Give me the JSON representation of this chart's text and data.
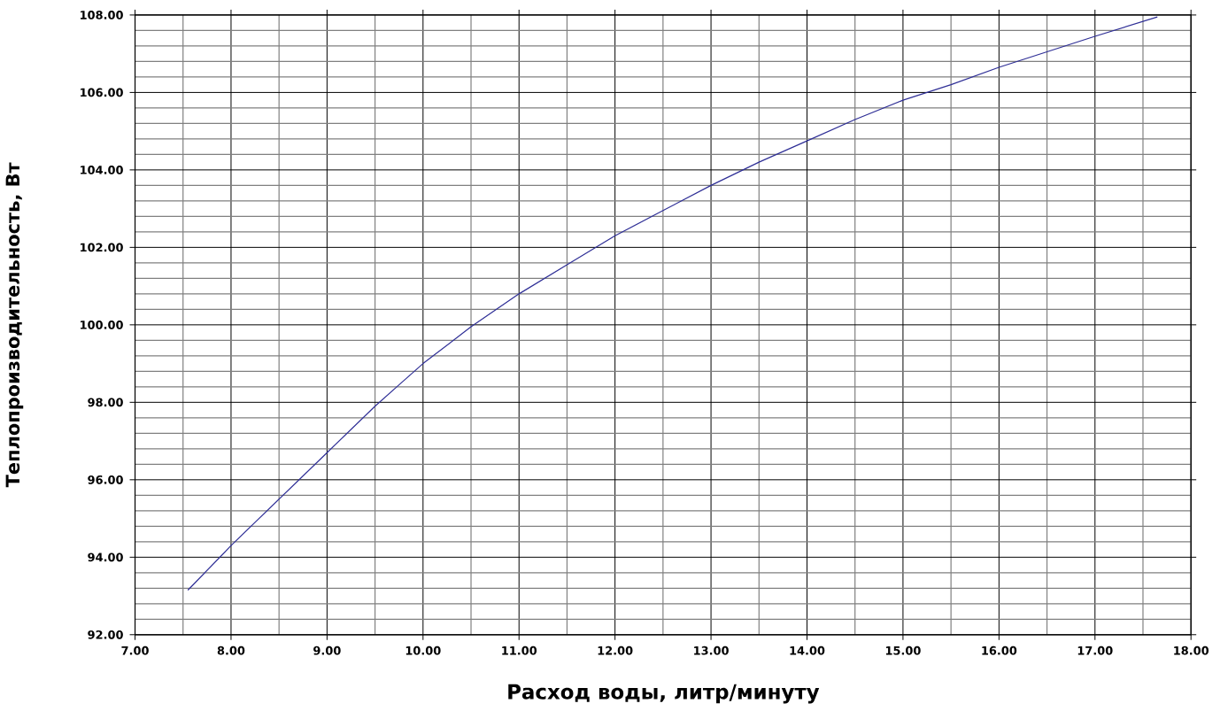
{
  "chart_data": {
    "type": "line",
    "xlabel": "Расход воды, литр/минуту",
    "ylabel": "Теплопроизводительность, Вт",
    "x": [
      7.55,
      8.0,
      8.5,
      9.0,
      9.5,
      9.75,
      10.0,
      10.5,
      11.0,
      11.5,
      12.0,
      12.5,
      13.0,
      13.5,
      14.0,
      14.5,
      15.0,
      15.5,
      16.0,
      16.5,
      17.0,
      17.65
    ],
    "series": [
      {
        "color": "#2e2e96",
        "values": [
          93.15,
          94.3,
          95.5,
          96.7,
          97.9,
          98.45,
          99.0,
          99.95,
          100.8,
          101.55,
          102.3,
          102.95,
          103.6,
          104.2,
          104.75,
          105.3,
          105.8,
          106.2,
          106.65,
          107.05,
          107.45,
          107.95
        ]
      }
    ],
    "xlim": [
      7,
      18
    ],
    "ylim": [
      92,
      108
    ],
    "xticks": [
      {
        "value": 7,
        "label": "7.00"
      },
      {
        "value": 8,
        "label": "8.00"
      },
      {
        "value": 9,
        "label": "9.00"
      },
      {
        "value": 10,
        "label": "10.00"
      },
      {
        "value": 11,
        "label": "11.00"
      },
      {
        "value": 12,
        "label": "12.00"
      },
      {
        "value": 13,
        "label": "13.00"
      },
      {
        "value": 14,
        "label": "14.00"
      },
      {
        "value": 15,
        "label": "15.00"
      },
      {
        "value": 16,
        "label": "16.00"
      },
      {
        "value": 17,
        "label": "17.00"
      },
      {
        "value": 18,
        "label": "18.00"
      }
    ],
    "yticks": [
      {
        "value": 92,
        "label": "92.00"
      },
      {
        "value": 94,
        "label": "94.00"
      },
      {
        "value": 96,
        "label": "96.00"
      },
      {
        "value": 98,
        "label": "98.00"
      },
      {
        "value": 100,
        "label": "100.00"
      },
      {
        "value": 102,
        "label": "102.00"
      },
      {
        "value": 104,
        "label": "104.00"
      },
      {
        "value": 106,
        "label": "106.00"
      },
      {
        "value": 108,
        "label": "108.00"
      }
    ],
    "grid": true,
    "marker": "none",
    "line_style": "solid"
  }
}
